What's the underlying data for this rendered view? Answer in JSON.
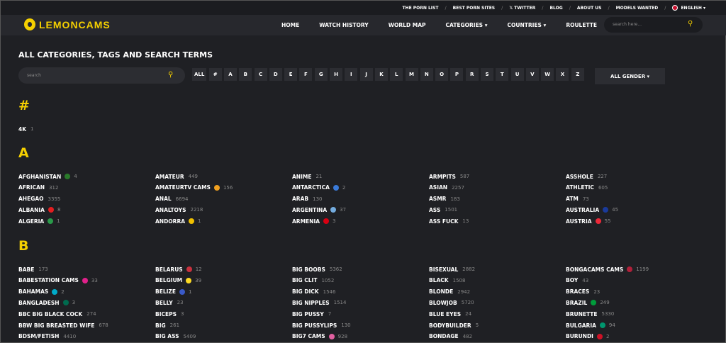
{
  "topbar": {
    "links": [
      "THE PORN LIST",
      "BEST PORN SITES",
      "𝕏 TWITTER",
      "BLOG",
      "ABOUT US",
      "MODELS WANTED"
    ],
    "language": "ENGLISH ▾"
  },
  "nav": {
    "logo": "LEMONCAMS",
    "items": [
      "HOME",
      "WATCH HISTORY",
      "WORLD MAP",
      "CATEGORIES ▾",
      "COUNTRIES ▾",
      "ROULETTE"
    ],
    "search_placeholder": "search here..."
  },
  "page": {
    "title": "ALL CATEGORIES, TAGS AND SEARCH TERMS",
    "search_placeholder": "search",
    "gender": "ALL GENDER ▾",
    "letters": [
      "ALL",
      "#",
      "A",
      "B",
      "C",
      "D",
      "E",
      "F",
      "G",
      "H",
      "I",
      "J",
      "K",
      "L",
      "M",
      "N",
      "O",
      "P",
      "R",
      "S",
      "T",
      "U",
      "V",
      "W",
      "X",
      "Z"
    ]
  },
  "accent": "#f5d000",
  "sections": [
    {
      "heading": "#",
      "columns": [
        [
          {
            "name": "4K",
            "count": "1"
          }
        ]
      ]
    },
    {
      "heading": "A",
      "columns": [
        [
          {
            "name": "AFGHANISTAN",
            "count": "4",
            "icon": "flag-afghanistan",
            "color": "#2a7a2a"
          },
          {
            "name": "AFRICAN",
            "count": "312"
          },
          {
            "name": "AHEGAO",
            "count": "3355"
          },
          {
            "name": "ALBANIA",
            "count": "8",
            "icon": "flag-albania",
            "color": "#e41e20"
          },
          {
            "name": "ALGERIA",
            "count": "1",
            "icon": "flag-algeria",
            "color": "#2a9a4a"
          }
        ],
        [
          {
            "name": "AMATEUR",
            "count": "449"
          },
          {
            "name": "AMATEURTV CAMS",
            "count": "156",
            "icon": "star-icon",
            "color": "#f0a020"
          },
          {
            "name": "ANAL",
            "count": "6694"
          },
          {
            "name": "ANALTOYS",
            "count": "2218"
          },
          {
            "name": "ANDORRA",
            "count": "1",
            "icon": "flag-andorra",
            "color": "#f0c000"
          }
        ],
        [
          {
            "name": "ANIME",
            "count": "21"
          },
          {
            "name": "ANTARCTICA",
            "count": "2",
            "icon": "flag-antarctica",
            "color": "#3a7ad8"
          },
          {
            "name": "ARAB",
            "count": "130"
          },
          {
            "name": "ARGENTINA",
            "count": "37",
            "icon": "flag-argentina",
            "color": "#74acdf"
          },
          {
            "name": "ARMENIA",
            "count": "3",
            "icon": "flag-armenia",
            "color": "#d90012"
          }
        ],
        [
          {
            "name": "ARMPITS",
            "count": "587"
          },
          {
            "name": "ASIAN",
            "count": "2257"
          },
          {
            "name": "ASMR",
            "count": "183"
          },
          {
            "name": "ASS",
            "count": "1501"
          },
          {
            "name": "ASS FUCK",
            "count": "13"
          }
        ],
        [
          {
            "name": "ASSHOLE",
            "count": "227"
          },
          {
            "name": "ATHLETIC",
            "count": "605"
          },
          {
            "name": "ATM",
            "count": "73"
          },
          {
            "name": "AUSTRALIA",
            "count": "45",
            "icon": "flag-australia",
            "color": "#1a3a9a"
          },
          {
            "name": "AUSTRIA",
            "count": "55",
            "icon": "flag-austria",
            "color": "#ed2939"
          }
        ]
      ]
    },
    {
      "heading": "B",
      "columns": [
        [
          {
            "name": "BABE",
            "count": "173"
          },
          {
            "name": "BABESTATION CAMS",
            "count": "33",
            "icon": "babestation-icon",
            "color": "#e0208a"
          },
          {
            "name": "BAHAMAS",
            "count": "2",
            "icon": "flag-bahamas",
            "color": "#00abc9"
          },
          {
            "name": "BANGLADESH",
            "count": "3",
            "icon": "flag-bangladesh",
            "color": "#006a4e"
          },
          {
            "name": "BBC BIG BLACK COCK",
            "count": "274"
          },
          {
            "name": "BBW BIG BREASTED WIFE",
            "count": "678"
          },
          {
            "name": "BDSM/FETISH",
            "count": "4410"
          }
        ],
        [
          {
            "name": "BELARUS",
            "count": "12",
            "icon": "flag-belarus",
            "color": "#c8313e"
          },
          {
            "name": "BELGIUM",
            "count": "39",
            "icon": "flag-belgium",
            "color": "#fdda24"
          },
          {
            "name": "BELIZE",
            "count": "1",
            "icon": "flag-belize",
            "color": "#3a5ac8"
          },
          {
            "name": "BELLY",
            "count": "23"
          },
          {
            "name": "BICEPS",
            "count": "3"
          },
          {
            "name": "BIG",
            "count": "261"
          },
          {
            "name": "BIG ASS",
            "count": "5409"
          }
        ],
        [
          {
            "name": "BIG BOOBS",
            "count": "5362"
          },
          {
            "name": "BIG CLIT",
            "count": "1052"
          },
          {
            "name": "BIG DICK",
            "count": "1546"
          },
          {
            "name": "BIG NIPPLES",
            "count": "1514"
          },
          {
            "name": "BIG PUSSY",
            "count": "7"
          },
          {
            "name": "BIG PUSSYLIPS",
            "count": "130"
          },
          {
            "name": "BIG7 CAMS",
            "count": "928",
            "icon": "big7-icon",
            "color": "#e060a0"
          }
        ],
        [
          {
            "name": "BISEXUAL",
            "count": "2882"
          },
          {
            "name": "BLACK",
            "count": "1508"
          },
          {
            "name": "BLONDE",
            "count": "2942"
          },
          {
            "name": "BLOWJOB",
            "count": "5720"
          },
          {
            "name": "BLUE EYES",
            "count": "24"
          },
          {
            "name": "BODYBUILDER",
            "count": "5"
          },
          {
            "name": "BONDAGE",
            "count": "482"
          }
        ],
        [
          {
            "name": "BONGACAMS CAMS",
            "count": "1199",
            "icon": "bongacams-icon",
            "color": "#b0203a"
          },
          {
            "name": "BOY",
            "count": "43"
          },
          {
            "name": "BRACES",
            "count": "23"
          },
          {
            "name": "BRAZIL",
            "count": "249",
            "icon": "flag-brazil",
            "color": "#009c3b"
          },
          {
            "name": "BRUNETTE",
            "count": "5330"
          },
          {
            "name": "BULGARIA",
            "count": "94",
            "icon": "flag-bulgaria",
            "color": "#00966e"
          },
          {
            "name": "BURUNDI",
            "count": "2",
            "icon": "flag-burundi",
            "color": "#ce1126"
          }
        ]
      ]
    }
  ]
}
